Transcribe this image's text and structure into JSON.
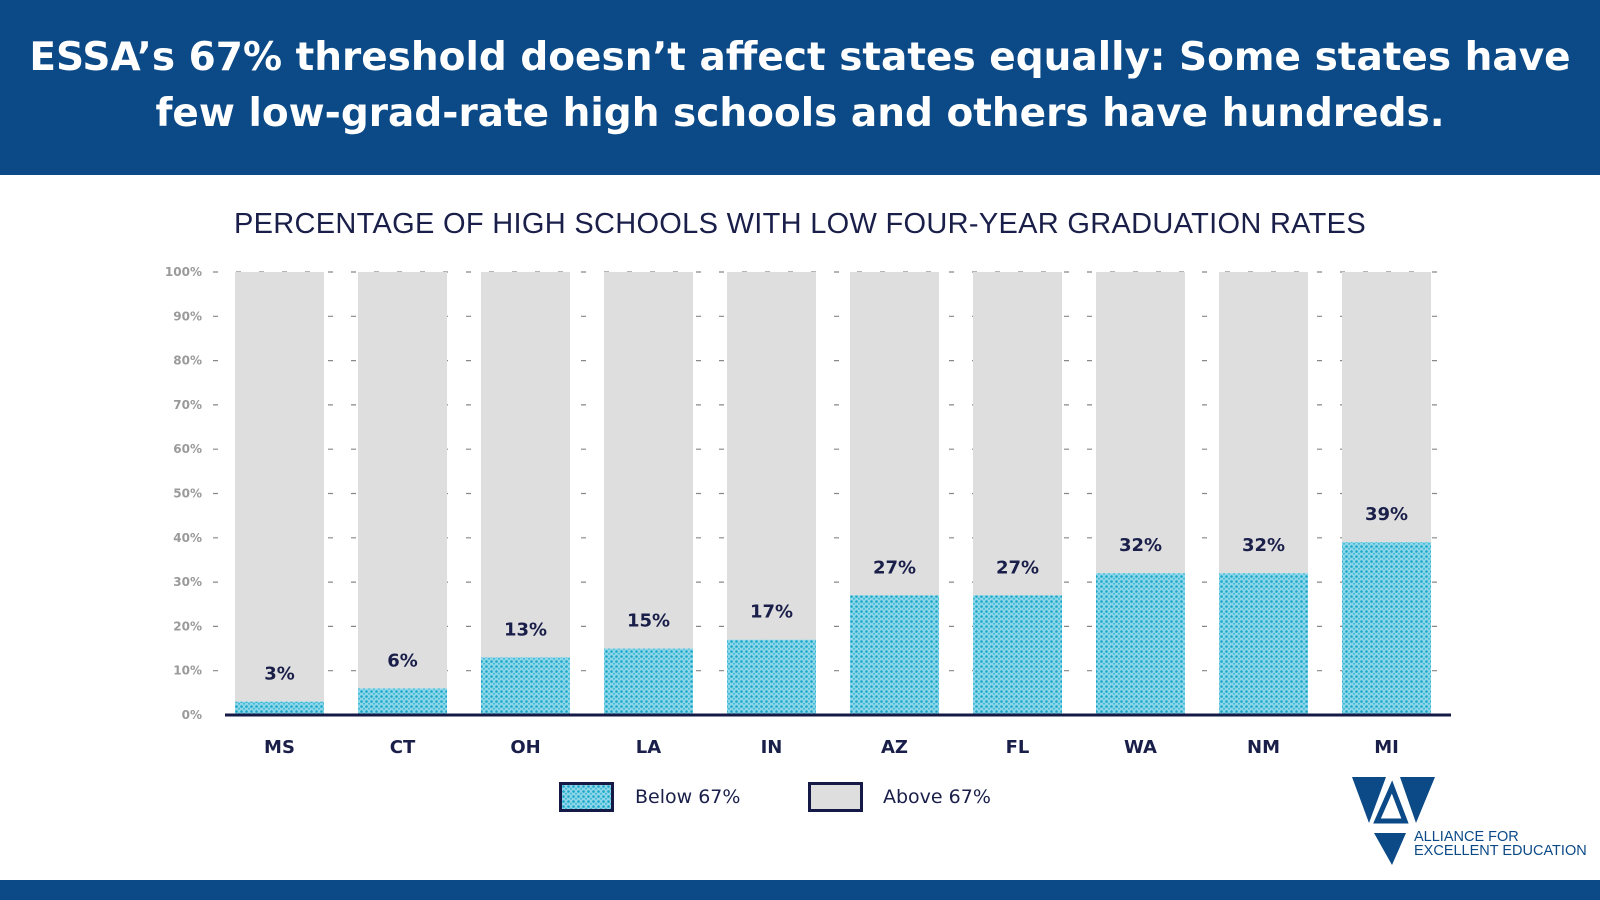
{
  "header": {
    "line1": "ESSA’s 67% threshold doesn’t affect states equally: Some states have",
    "line2": "few low-grad-rate high schools and others have hundreds."
  },
  "chart_data": {
    "type": "bar",
    "stacked": true,
    "title": "PERCENTAGE OF HIGH SCHOOLS WITH LOW FOUR-YEAR GRADUATION RATES",
    "categories": [
      "MS",
      "CT",
      "OH",
      "LA",
      "IN",
      "AZ",
      "FL",
      "WA",
      "NM",
      "MI"
    ],
    "series": [
      {
        "name": "Below 67%",
        "values": [
          3,
          6,
          13,
          15,
          17,
          27,
          27,
          32,
          32,
          39
        ],
        "color": "#2fb3d3"
      },
      {
        "name": "Above 67%",
        "values": [
          97,
          94,
          87,
          85,
          83,
          73,
          73,
          68,
          68,
          61
        ],
        "color": "#dedede"
      }
    ],
    "data_labels": [
      "3%",
      "6%",
      "13%",
      "15%",
      "17%",
      "27%",
      "27%",
      "32%",
      "32%",
      "39%"
    ],
    "yticks": [
      "0%",
      "10%",
      "20%",
      "30%",
      "40%",
      "50%",
      "60%",
      "70%",
      "80%",
      "90%",
      "100%"
    ],
    "ylim": [
      0,
      100
    ],
    "grid": "dashed horizontal",
    "legend_position": "bottom"
  },
  "legend": {
    "below": "Below 67%",
    "above": "Above 67%"
  },
  "logo": {
    "line1": "ALLIANCE FOR",
    "line2": "EXCELLENT EDUCATION"
  },
  "colors": {
    "brand": "#0b4a87",
    "below": "#2fb3d3",
    "above": "#dedede",
    "axis": "#141a45"
  }
}
